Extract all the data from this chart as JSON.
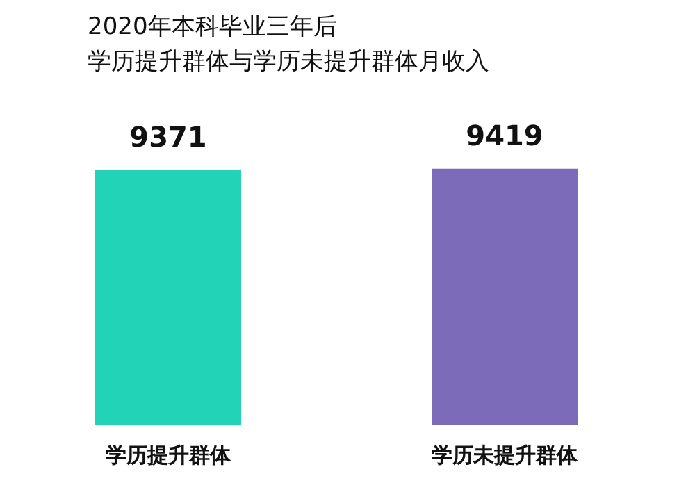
{
  "chart_data": {
    "type": "bar",
    "title": "2020年本科毕业三年后",
    "subtitle": "学历提升群体与学历未提升群体月收入",
    "categories": [
      "学历提升群体",
      "学历未提升群体"
    ],
    "values": [
      9371,
      9419
    ],
    "colors": [
      "#22d3b8",
      "#7b6bb8"
    ],
    "data_labels": true
  }
}
